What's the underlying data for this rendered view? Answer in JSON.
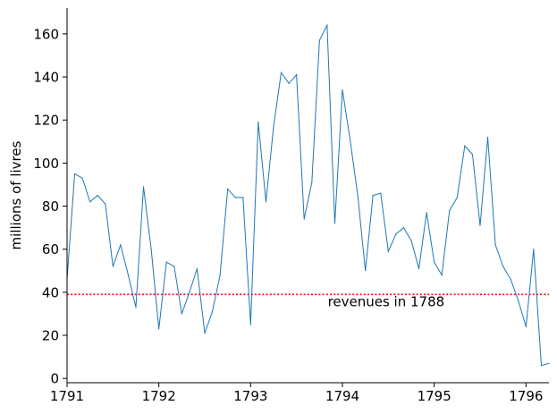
{
  "chart_data": {
    "type": "line",
    "title": "",
    "xlabel": "",
    "ylabel": "millions of livres",
    "xlim": [
      1791.0,
      1796.25
    ],
    "ylim": [
      -2,
      172
    ],
    "x_ticks": [
      1791,
      1792,
      1793,
      1794,
      1795,
      1796
    ],
    "y_ticks": [
      0,
      20,
      40,
      60,
      80,
      100,
      120,
      140,
      160
    ],
    "grid": false,
    "legend": "none",
    "series": [
      {
        "color": "#1f77b4",
        "x": [
          1791.0,
          1791.083,
          1791.167,
          1791.25,
          1791.333,
          1791.417,
          1791.5,
          1791.583,
          1791.667,
          1791.75,
          1791.833,
          1791.917,
          1792.0,
          1792.083,
          1792.167,
          1792.25,
          1792.333,
          1792.417,
          1792.5,
          1792.583,
          1792.667,
          1792.75,
          1792.833,
          1792.917,
          1793.0,
          1793.083,
          1793.167,
          1793.25,
          1793.333,
          1793.417,
          1793.5,
          1793.583,
          1793.667,
          1793.75,
          1793.833,
          1793.917,
          1794.0,
          1794.083,
          1794.167,
          1794.25,
          1794.333,
          1794.417,
          1794.5,
          1794.583,
          1794.667,
          1794.75,
          1794.833,
          1794.917,
          1795.0,
          1795.083,
          1795.167,
          1795.25,
          1795.333,
          1795.417,
          1795.5,
          1795.583,
          1795.667,
          1795.75,
          1795.833,
          1795.917,
          1796.0,
          1796.083,
          1796.167,
          1796.25
        ],
        "values": [
          46,
          95,
          93,
          82,
          85,
          81,
          52,
          62,
          48,
          33,
          89,
          60,
          23,
          54,
          52,
          30,
          40,
          51,
          21,
          31,
          48,
          88,
          84,
          84,
          25,
          119,
          82,
          117,
          142,
          137,
          141,
          74,
          91,
          157,
          164,
          72,
          134,
          111,
          85,
          50,
          85,
          86,
          59,
          67,
          70,
          64,
          51,
          77,
          54,
          48,
          78,
          84,
          108,
          104,
          71,
          112,
          62,
          52,
          46,
          36,
          24,
          60,
          6,
          7
        ]
      }
    ],
    "reference_lines": [
      {
        "value": 39,
        "color": "#ff0000",
        "style": "dotted",
        "label": "revenues in 1788"
      }
    ]
  }
}
